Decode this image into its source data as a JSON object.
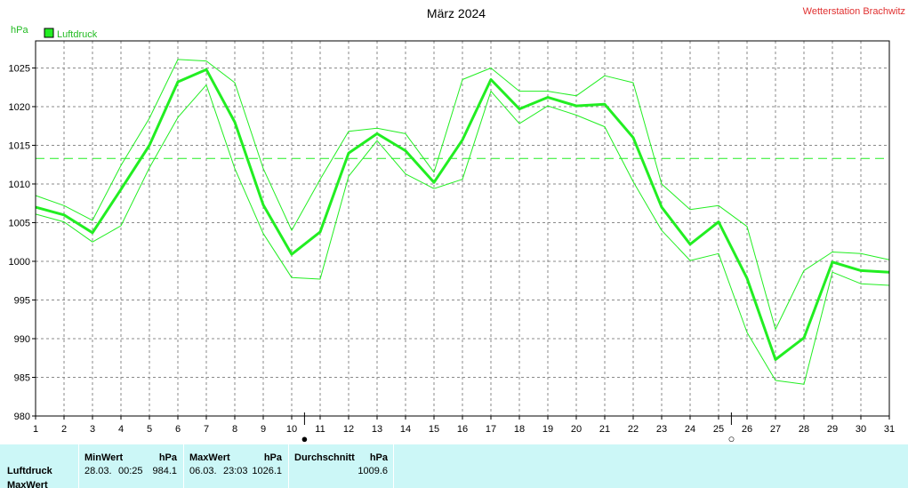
{
  "header": {
    "title": "März 2024",
    "station": "Wetterstation Brachwitz",
    "unit_label": "hPa",
    "legend_label": "Luftdruck"
  },
  "colors": {
    "series": "#22ee22",
    "station": "#e03030",
    "grid": "#8a8a8a",
    "footer_bg": "#ccf7f7"
  },
  "chart_data": {
    "type": "line",
    "title": "März 2024",
    "ylabel": "hPa",
    "x": [
      1,
      2,
      3,
      4,
      5,
      6,
      7,
      8,
      9,
      10,
      11,
      12,
      13,
      14,
      15,
      16,
      17,
      18,
      19,
      20,
      21,
      22,
      23,
      24,
      25,
      26,
      27,
      28,
      29,
      30,
      31
    ],
    "xticks": [
      "1",
      "2",
      "3",
      "4",
      "5",
      "6",
      "7",
      "8",
      "9",
      "10",
      "11",
      "12",
      "13",
      "14",
      "15",
      "16",
      "17",
      "18",
      "19",
      "20",
      "21",
      "22",
      "23",
      "24",
      "25",
      "26",
      "27",
      "28",
      "29",
      "30",
      "31"
    ],
    "ylim": [
      980,
      1028.5
    ],
    "yticks": [
      980,
      985,
      990,
      995,
      1000,
      1005,
      1010,
      1015,
      1020,
      1025
    ],
    "grid": true,
    "legend_position": "top-left",
    "series": [
      {
        "name": "Luftdruck",
        "values": [
          1007.0,
          1006.0,
          1003.7,
          1009.3,
          1015.0,
          1023.2,
          1024.8,
          1018.0,
          1007.3,
          1000.9,
          1003.8,
          1014.0,
          1016.5,
          1014.3,
          1010.2,
          1015.7,
          1023.5,
          1019.7,
          1021.2,
          1020.1,
          1020.3,
          1016.0,
          1007.0,
          1002.2,
          1005.1,
          997.8,
          987.3,
          990.1,
          999.9,
          998.8,
          998.6
        ]
      },
      {
        "values": [
          1008.5,
          1007.2,
          1005.3,
          1012.4,
          1018.5,
          1026.1,
          1025.9,
          1023.1,
          1012.0,
          1004.0,
          1010.6,
          1016.8,
          1017.2,
          1016.5,
          1011.5,
          1023.5,
          1025.0,
          1022.0,
          1022.0,
          1021.4,
          1024.0,
          1023.1,
          1010.0,
          1006.7,
          1007.2,
          1004.5,
          991.2,
          998.8,
          1001.2,
          1001.0,
          1000.2
        ]
      },
      {
        "values": [
          1006.1,
          1005.1,
          1002.5,
          1004.6,
          1012.1,
          1018.6,
          1022.8,
          1012.0,
          1003.6,
          997.9,
          997.7,
          1011.0,
          1015.6,
          1011.3,
          1009.4,
          1010.6,
          1022.0,
          1017.8,
          1020.1,
          1018.9,
          1017.4,
          1010.3,
          1004.0,
          1000.1,
          1001.0,
          990.8,
          984.6,
          984.1,
          998.6,
          997.1,
          996.9
        ]
      }
    ],
    "mean_line": 1013.3,
    "moon_phases": [
      {
        "day": 10,
        "symbol": "●"
      },
      {
        "day": 25,
        "symbol": "○"
      }
    ]
  },
  "footer": {
    "row_label": "Luftdruck",
    "row_label2": "MaxWert",
    "min": {
      "title": "MinWert",
      "unit": "hPa",
      "date": "28.03.",
      "time": "00:25",
      "value": "984.1"
    },
    "max": {
      "title": "MaxWert",
      "unit": "hPa",
      "date": "06.03.",
      "time": "23:03",
      "value": "1026.1"
    },
    "avg": {
      "title": "Durchschnitt",
      "unit": "hPa",
      "value": "1009.6"
    }
  }
}
